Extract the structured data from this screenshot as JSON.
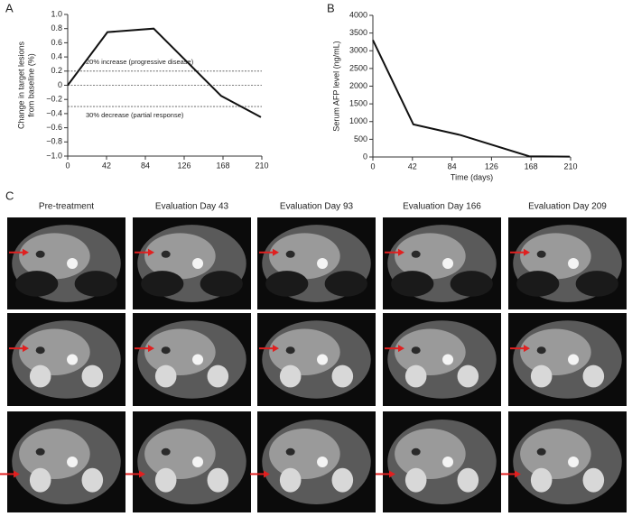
{
  "panel_labels": [
    "A",
    "B",
    "C"
  ],
  "chart_data": [
    {
      "type": "line",
      "ylabel": [
        "Change in target lesions",
        "from baseline (%)"
      ],
      "x": [
        0,
        43,
        93,
        166,
        209
      ],
      "series": [
        {
          "color": "#111111",
          "values": [
            0,
            0.75,
            0.8,
            -0.15,
            -0.45
          ]
        }
      ],
      "xlim": [
        0,
        210
      ],
      "xticks": [
        0,
        42,
        84,
        126,
        168,
        210
      ],
      "ylim": [
        -1,
        1
      ],
      "yticks": [
        {
          "value": -1,
          "label": "−1.0"
        },
        {
          "value": -0.8,
          "label": "−0.8"
        },
        {
          "value": -0.6,
          "label": "−0.6"
        },
        {
          "value": -0.4,
          "label": "−0.4"
        },
        {
          "value": -0.2,
          "label": "−0.2"
        },
        0,
        0.2,
        0.4,
        0.6,
        0.8,
        {
          "value": 1,
          "label": "1.0"
        }
      ],
      "reference_lines": [
        0.2,
        0,
        -0.3
      ],
      "annotations": [
        "20% increase (progressive disease)",
        "30% decrease (partial response)"
      ]
    },
    {
      "type": "line",
      "ylabel": [
        "Serum AFP level (ng/mL)"
      ],
      "xlabel": "Time (days)",
      "x": [
        0,
        43,
        93,
        166,
        209
      ],
      "series": [
        {
          "color": "#111111",
          "values": [
            3300,
            920,
            620,
            20,
            10
          ]
        }
      ],
      "xlim": [
        0,
        210
      ],
      "xticks": [
        0,
        42,
        84,
        126,
        168,
        210
      ],
      "ylim": [
        0,
        4000
      ],
      "yticks": [
        0,
        500,
        1000,
        1500,
        2000,
        2500,
        3000,
        3500,
        4000
      ]
    }
  ],
  "image_columns": [
    "Pre-treatment",
    "Evaluation Day 43",
    "Evaluation Day 93",
    "Evaluation Day 166",
    "Evaluation Day 209"
  ]
}
